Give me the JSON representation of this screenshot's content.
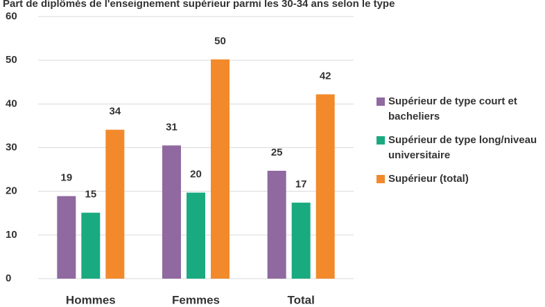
{
  "chart_data": {
    "type": "bar",
    "title": "Part de diplômés de l'enseignement supérieur parmi les 30-34 ans selon le type",
    "categories": [
      "Hommes",
      "Femmes",
      "Total"
    ],
    "series": [
      {
        "name": "Supérieur de type court et bacheliers",
        "color": "#9069a0",
        "values": [
          18.9,
          30.5,
          24.7
        ],
        "value_labels": [
          "19",
          "31",
          "25"
        ]
      },
      {
        "name": "Supérieur de type long/niveau universitaire",
        "color": "#1aaa80",
        "values": [
          15.1,
          19.7,
          17.4
        ],
        "value_labels": [
          "15",
          "20",
          "17"
        ]
      },
      {
        "name": "Supérieur (total)",
        "color": "#f28a2b",
        "values": [
          34.1,
          50.2,
          42.2
        ],
        "value_labels": [
          "34",
          "50",
          "42"
        ]
      }
    ],
    "ylim": [
      0,
      60
    ],
    "yticks": [
      0,
      10,
      20,
      30,
      40,
      50,
      60
    ],
    "grid": true,
    "legend": "right"
  }
}
